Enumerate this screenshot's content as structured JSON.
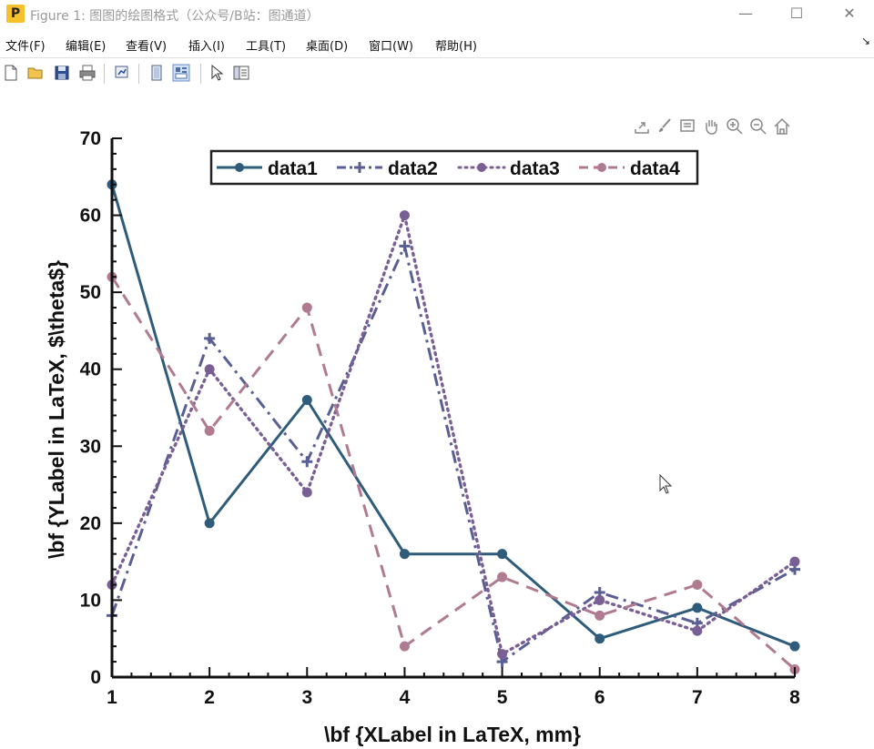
{
  "window": {
    "title": "Figure 1: 图图的绘图格式（公众号/B站：图通道）",
    "icon_label": "P",
    "minimize_label": "—",
    "maximize_label": "☐",
    "close_label": "✕"
  },
  "menubar": {
    "items": [
      {
        "label": "文件(F)"
      },
      {
        "label": "编辑(E)"
      },
      {
        "label": "查看(V)"
      },
      {
        "label": "插入(I)"
      },
      {
        "label": "工具(T)"
      },
      {
        "label": "桌面(D)"
      },
      {
        "label": "窗口(W)"
      },
      {
        "label": "帮助(H)"
      }
    ],
    "overflow_label": "↘"
  },
  "toolbar": {
    "icons": [
      "new-figure-icon",
      "open-file-icon",
      "save-icon",
      "print-icon",
      "link-plot-icon",
      "hide-plot-tools-icon",
      "show-plot-tools-icon",
      "edit-plot-cursor-icon",
      "property-inspector-icon"
    ]
  },
  "axes_toolbar": {
    "icons": [
      "export-icon",
      "brush-icon",
      "data-tips-icon",
      "pan-icon",
      "zoom-in-icon",
      "zoom-out-icon",
      "restore-view-icon"
    ]
  },
  "colors": {
    "data1": "#2e5c7a",
    "data2": "#5a5f93",
    "data3": "#7a5f94",
    "data4": "#b07a90"
  },
  "chart_data": {
    "type": "line",
    "x": [
      1,
      2,
      3,
      4,
      5,
      6,
      7,
      8
    ],
    "series": [
      {
        "name": "data1",
        "values": [
          64,
          20,
          36,
          16,
          16,
          5,
          9,
          4
        ],
        "style": "solid",
        "marker": "circle"
      },
      {
        "name": "data2",
        "values": [
          8,
          44,
          28,
          56,
          2,
          11,
          7,
          14
        ],
        "style": "dashdot",
        "marker": "plus"
      },
      {
        "name": "data3",
        "values": [
          12,
          40,
          24,
          60,
          3,
          10,
          6,
          15
        ],
        "style": "dotted",
        "marker": "circle"
      },
      {
        "name": "data4",
        "values": [
          52,
          32,
          48,
          4,
          13,
          8,
          12,
          1
        ],
        "style": "dashed",
        "marker": "circle"
      }
    ],
    "xlabel": "\\bf {XLabel in LaTeX, mm}",
    "ylabel": "\\bf {YLabel  in LaTeX, $\\theta$}",
    "xlim": [
      1,
      8
    ],
    "ylim": [
      0,
      70
    ],
    "xticks": [
      "1",
      "2",
      "3",
      "4",
      "5",
      "6",
      "7",
      "8"
    ],
    "yticks": [
      "0",
      "10",
      "20",
      "30",
      "40",
      "50",
      "60",
      "70"
    ],
    "grid": false,
    "legend": "top, horizontal"
  }
}
